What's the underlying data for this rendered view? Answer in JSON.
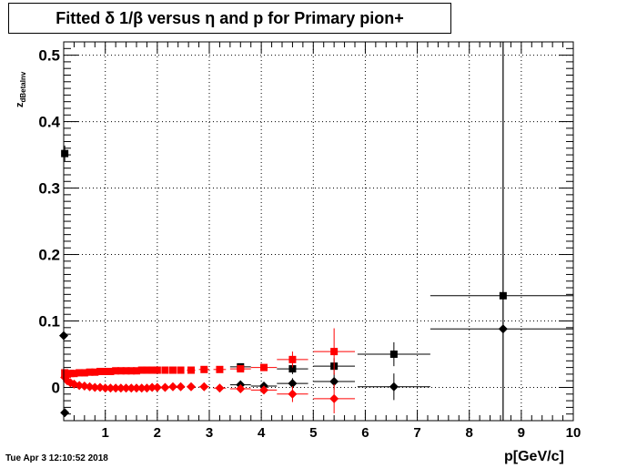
{
  "title": "Fitted δ 1/β versus η and p for Primary pion+",
  "timestamp": "Tue Apr  3 12:10:52 2018",
  "chart_data": {
    "type": "scatter",
    "title": "Fitted δ 1/β versus η and p for Primary pion+",
    "xlabel": "p[GeV/c]",
    "ylabel_main": "z",
    "ylabel_sub": "dBetaInv",
    "xlim": [
      0.2,
      10
    ],
    "ylim": [
      -0.05,
      0.52
    ],
    "xticks": [
      1,
      2,
      3,
      4,
      5,
      6,
      7,
      8,
      9,
      10
    ],
    "yticks": [
      0,
      0.1,
      0.2,
      0.3,
      0.4,
      0.5
    ],
    "ytick_labels": [
      "0",
      "0.1",
      "0.2",
      "0.3",
      "0.4",
      "0.5"
    ],
    "grid": true,
    "series": [
      {
        "color": "#000000",
        "marker": "square",
        "points": [
          {
            "x": 0.22,
            "y": 0.352,
            "xerr": 0.02,
            "yerr": 0.012
          },
          {
            "x": 3.6,
            "y": 0.031,
            "xerr": 0.2,
            "yerr": 0.004
          },
          {
            "x": 4.6,
            "y": 0.028,
            "xerr": 0.3,
            "yerr": 0.008
          },
          {
            "x": 5.4,
            "y": 0.032,
            "xerr": 0.4,
            "yerr": 0.012
          },
          {
            "x": 6.55,
            "y": 0.05,
            "xerr": 0.7,
            "yerr": 0.018
          },
          {
            "x": 8.65,
            "y": 0.138,
            "xerr": 1.4,
            "yerr": 0.5
          }
        ]
      },
      {
        "color": "#000000",
        "marker": "diamond",
        "points": [
          {
            "x": 0.2,
            "y": 0.078,
            "xerr": 0.02,
            "yerr": 0.004
          },
          {
            "x": 0.22,
            "y": -0.038,
            "xerr": 0.02,
            "yerr": 0.004
          },
          {
            "x": 3.6,
            "y": 0.004,
            "xerr": 0.2,
            "yerr": 0.004
          },
          {
            "x": 4.05,
            "y": 0.002,
            "xerr": 0.25,
            "yerr": 0.004
          },
          {
            "x": 4.6,
            "y": 0.006,
            "xerr": 0.3,
            "yerr": 0.008
          },
          {
            "x": 5.4,
            "y": 0.009,
            "xerr": 0.4,
            "yerr": 0.012
          },
          {
            "x": 6.55,
            "y": 0.001,
            "xerr": 0.7,
            "yerr": 0.02
          },
          {
            "x": 8.65,
            "y": 0.088,
            "xerr": 1.4,
            "yerr": 0.5
          }
        ]
      },
      {
        "color": "#ff0000",
        "marker": "square",
        "points": [
          {
            "x": 0.22,
            "y": 0.022,
            "xerr": 0.01,
            "yerr": 0.002
          },
          {
            "x": 0.27,
            "y": 0.02,
            "xerr": 0.01,
            "yerr": 0.002
          },
          {
            "x": 0.33,
            "y": 0.021,
            "xerr": 0.02,
            "yerr": 0.002
          },
          {
            "x": 0.4,
            "y": 0.021,
            "xerr": 0.02,
            "yerr": 0.002
          },
          {
            "x": 0.5,
            "y": 0.022,
            "xerr": 0.03,
            "yerr": 0.002
          },
          {
            "x": 0.6,
            "y": 0.022,
            "xerr": 0.03,
            "yerr": 0.002
          },
          {
            "x": 0.7,
            "y": 0.023,
            "xerr": 0.03,
            "yerr": 0.002
          },
          {
            "x": 0.8,
            "y": 0.023,
            "xerr": 0.03,
            "yerr": 0.002
          },
          {
            "x": 0.9,
            "y": 0.024,
            "xerr": 0.03,
            "yerr": 0.002
          },
          {
            "x": 1.0,
            "y": 0.024,
            "xerr": 0.03,
            "yerr": 0.002
          },
          {
            "x": 1.1,
            "y": 0.024,
            "xerr": 0.03,
            "yerr": 0.002
          },
          {
            "x": 1.2,
            "y": 0.025,
            "xerr": 0.03,
            "yerr": 0.002
          },
          {
            "x": 1.3,
            "y": 0.025,
            "xerr": 0.03,
            "yerr": 0.002
          },
          {
            "x": 1.4,
            "y": 0.025,
            "xerr": 0.03,
            "yerr": 0.002
          },
          {
            "x": 1.5,
            "y": 0.025,
            "xerr": 0.03,
            "yerr": 0.002
          },
          {
            "x": 1.6,
            "y": 0.025,
            "xerr": 0.03,
            "yerr": 0.002
          },
          {
            "x": 1.7,
            "y": 0.026,
            "xerr": 0.03,
            "yerr": 0.002
          },
          {
            "x": 1.8,
            "y": 0.026,
            "xerr": 0.03,
            "yerr": 0.002
          },
          {
            "x": 1.9,
            "y": 0.026,
            "xerr": 0.03,
            "yerr": 0.002
          },
          {
            "x": 2.0,
            "y": 0.026,
            "xerr": 0.03,
            "yerr": 0.002
          },
          {
            "x": 2.15,
            "y": 0.026,
            "xerr": 0.05,
            "yerr": 0.002
          },
          {
            "x": 2.3,
            "y": 0.026,
            "xerr": 0.05,
            "yerr": 0.002
          },
          {
            "x": 2.45,
            "y": 0.026,
            "xerr": 0.05,
            "yerr": 0.002
          },
          {
            "x": 2.65,
            "y": 0.026,
            "xerr": 0.08,
            "yerr": 0.003
          },
          {
            "x": 2.9,
            "y": 0.027,
            "xerr": 0.1,
            "yerr": 0.003
          },
          {
            "x": 3.2,
            "y": 0.027,
            "xerr": 0.12,
            "yerr": 0.003
          },
          {
            "x": 3.6,
            "y": 0.028,
            "xerr": 0.2,
            "yerr": 0.004
          },
          {
            "x": 4.05,
            "y": 0.03,
            "xerr": 0.25,
            "yerr": 0.005
          },
          {
            "x": 4.6,
            "y": 0.042,
            "xerr": 0.3,
            "yerr": 0.012
          },
          {
            "x": 5.4,
            "y": 0.054,
            "xerr": 0.4,
            "yerr": 0.035
          }
        ]
      },
      {
        "color": "#ff0000",
        "marker": "diamond",
        "points": [
          {
            "x": 0.22,
            "y": 0.015,
            "xerr": 0.01,
            "yerr": 0.002
          },
          {
            "x": 0.27,
            "y": 0.01,
            "xerr": 0.01,
            "yerr": 0.002
          },
          {
            "x": 0.33,
            "y": 0.007,
            "xerr": 0.02,
            "yerr": 0.002
          },
          {
            "x": 0.4,
            "y": 0.005,
            "xerr": 0.02,
            "yerr": 0.002
          },
          {
            "x": 0.5,
            "y": 0.003,
            "xerr": 0.03,
            "yerr": 0.002
          },
          {
            "x": 0.6,
            "y": 0.002,
            "xerr": 0.03,
            "yerr": 0.002
          },
          {
            "x": 0.7,
            "y": 0.001,
            "xerr": 0.03,
            "yerr": 0.002
          },
          {
            "x": 0.8,
            "y": 0.0,
            "xerr": 0.03,
            "yerr": 0.002
          },
          {
            "x": 0.9,
            "y": 0.0,
            "xerr": 0.03,
            "yerr": 0.002
          },
          {
            "x": 1.0,
            "y": -0.001,
            "xerr": 0.03,
            "yerr": 0.002
          },
          {
            "x": 1.1,
            "y": -0.001,
            "xerr": 0.03,
            "yerr": 0.002
          },
          {
            "x": 1.2,
            "y": -0.001,
            "xerr": 0.03,
            "yerr": 0.002
          },
          {
            "x": 1.3,
            "y": -0.001,
            "xerr": 0.03,
            "yerr": 0.002
          },
          {
            "x": 1.4,
            "y": -0.001,
            "xerr": 0.03,
            "yerr": 0.002
          },
          {
            "x": 1.5,
            "y": -0.001,
            "xerr": 0.03,
            "yerr": 0.002
          },
          {
            "x": 1.6,
            "y": -0.001,
            "xerr": 0.03,
            "yerr": 0.002
          },
          {
            "x": 1.7,
            "y": -0.001,
            "xerr": 0.03,
            "yerr": 0.002
          },
          {
            "x": 1.8,
            "y": -0.001,
            "xerr": 0.03,
            "yerr": 0.002
          },
          {
            "x": 1.9,
            "y": 0.0,
            "xerr": 0.03,
            "yerr": 0.002
          },
          {
            "x": 2.0,
            "y": 0.0,
            "xerr": 0.03,
            "yerr": 0.002
          },
          {
            "x": 2.15,
            "y": 0.0,
            "xerr": 0.05,
            "yerr": 0.002
          },
          {
            "x": 2.3,
            "y": 0.001,
            "xerr": 0.05,
            "yerr": 0.002
          },
          {
            "x": 2.45,
            "y": 0.001,
            "xerr": 0.05,
            "yerr": 0.002
          },
          {
            "x": 2.65,
            "y": 0.001,
            "xerr": 0.08,
            "yerr": 0.003
          },
          {
            "x": 2.9,
            "y": 0.001,
            "xerr": 0.1,
            "yerr": 0.003
          },
          {
            "x": 3.2,
            "y": -0.001,
            "xerr": 0.12,
            "yerr": 0.003
          },
          {
            "x": 3.6,
            "y": -0.002,
            "xerr": 0.2,
            "yerr": 0.004
          },
          {
            "x": 4.05,
            "y": -0.004,
            "xerr": 0.25,
            "yerr": 0.005
          },
          {
            "x": 4.6,
            "y": -0.01,
            "xerr": 0.3,
            "yerr": 0.012
          },
          {
            "x": 5.4,
            "y": -0.017,
            "xerr": 0.4,
            "yerr": 0.022
          }
        ]
      }
    ]
  }
}
